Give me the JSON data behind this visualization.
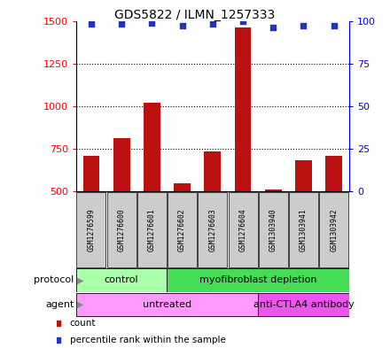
{
  "title": "GDS5822 / ILMN_1257333",
  "samples": [
    "GSM1276599",
    "GSM1276600",
    "GSM1276601",
    "GSM1276602",
    "GSM1276603",
    "GSM1276604",
    "GSM1303940",
    "GSM1303941",
    "GSM1303942"
  ],
  "counts": [
    710,
    810,
    1020,
    545,
    735,
    1460,
    510,
    680,
    710
  ],
  "percentile_ranks": [
    98,
    98,
    99,
    97,
    98,
    100,
    96,
    97,
    97
  ],
  "ylim_left": [
    500,
    1500
  ],
  "ylim_right": [
    0,
    100
  ],
  "yticks_left": [
    500,
    750,
    1000,
    1250,
    1500
  ],
  "yticks_right": [
    0,
    25,
    50,
    75,
    100
  ],
  "bar_color": "#BB1111",
  "dot_color": "#2233BB",
  "protocol_groups": [
    {
      "label": "control",
      "start": 0,
      "end": 3,
      "color": "#AAFFAA"
    },
    {
      "label": "myofibroblast depletion",
      "start": 3,
      "end": 9,
      "color": "#44DD55"
    }
  ],
  "agent_groups": [
    {
      "label": "untreated",
      "start": 0,
      "end": 6,
      "color": "#FF99FF"
    },
    {
      "label": "anti-CTLA4 antibody",
      "start": 6,
      "end": 9,
      "color": "#EE55EE"
    }
  ],
  "legend_items": [
    {
      "label": "count",
      "color": "#BB1111"
    },
    {
      "label": "percentile rank within the sample",
      "color": "#2233BB"
    }
  ],
  "bar_bottom": 500,
  "grid_lines": [
    750,
    1000,
    1250
  ],
  "label_box_color": "#CCCCCC",
  "label_fontsize": 5.8,
  "title_fontsize": 10
}
